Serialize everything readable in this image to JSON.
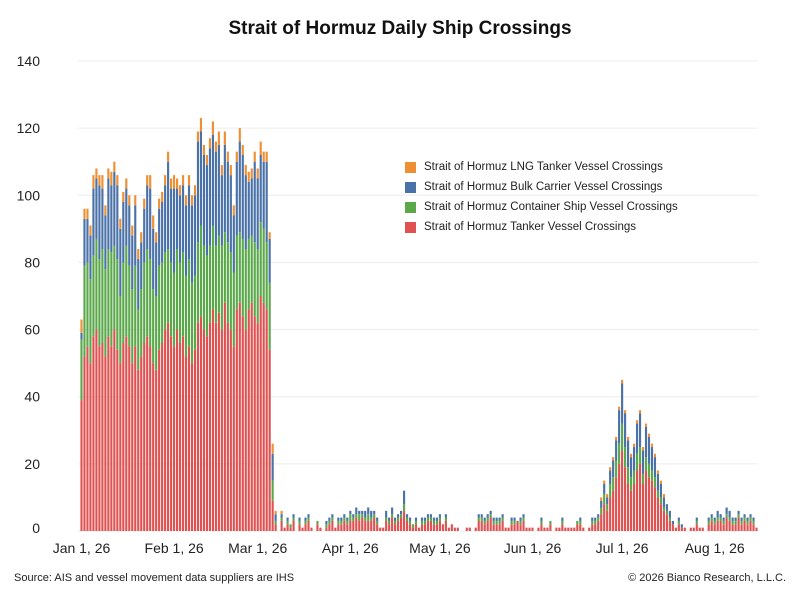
{
  "chart_data": {
    "type": "bar",
    "stacked": true,
    "title": "Strait of Hormuz Daily Ship Crossings",
    "xlabel": "",
    "ylabel": "",
    "ylim": [
      0,
      140
    ],
    "yticks": [
      0,
      20,
      40,
      60,
      80,
      100,
      120,
      140
    ],
    "grid": true,
    "legend_position": "right-middle",
    "x_tick_labels": [
      "Jan 1, 26",
      "Feb 1, 26",
      "Mar 1, 26",
      "Apr 1, 26",
      "May 1, 26",
      "Jun 1, 26",
      "Jul 1, 26",
      "Aug 1, 26"
    ],
    "start_date": "2026-01-01",
    "series": [
      {
        "name": "Strait of Hormuz Tanker Vessel Crossings",
        "color": "#e05252",
        "values": [
          39,
          52,
          55,
          50,
          58,
          60,
          55,
          56,
          52,
          58,
          55,
          60,
          54,
          50,
          56,
          58,
          55,
          50,
          55,
          48,
          52,
          56,
          58,
          55,
          50,
          48,
          54,
          56,
          60,
          62,
          58,
          55,
          60,
          56,
          58,
          52,
          55,
          50,
          54,
          62,
          64,
          60,
          58,
          62,
          66,
          62,
          65,
          60,
          68,
          62,
          60,
          55,
          66,
          68,
          64,
          60,
          66,
          68,
          64,
          62,
          70,
          68,
          66,
          54,
          9,
          2,
          0,
          3,
          1,
          2,
          1,
          3,
          0,
          2,
          1,
          2,
          3,
          1,
          0,
          2,
          1,
          0,
          1,
          2,
          3,
          1,
          2,
          2,
          3,
          2,
          3,
          3,
          4,
          3,
          4,
          3,
          3,
          3,
          4,
          2,
          1,
          1,
          3,
          2,
          4,
          2,
          3,
          4,
          6,
          3,
          2,
          1,
          2,
          1,
          2,
          2,
          3,
          3,
          2,
          2,
          3,
          2,
          3,
          1,
          2,
          1,
          1,
          0,
          0,
          1,
          1,
          0,
          1,
          3,
          3,
          2,
          3,
          4,
          2,
          2,
          2,
          3,
          1,
          1,
          2,
          2,
          3,
          2,
          3,
          1,
          1,
          1,
          0,
          1,
          2,
          1,
          1,
          2,
          0,
          1,
          1,
          2,
          1,
          1,
          1,
          1,
          2,
          2,
          1,
          0,
          1,
          2,
          2,
          3,
          5,
          8,
          6,
          10,
          12,
          16,
          20,
          24,
          19,
          14,
          12,
          14,
          18,
          20,
          14,
          18,
          16,
          15,
          13,
          10,
          8,
          6,
          5,
          3,
          2,
          1,
          2,
          1,
          1,
          0,
          1,
          1,
          2,
          1,
          1,
          0,
          2,
          3,
          2,
          3,
          3,
          2,
          4,
          3,
          2,
          2,
          4,
          2,
          3,
          2,
          3,
          2,
          1
        ]
      },
      {
        "name": "Strait of Hormuz Container Ship Vessel Crossings",
        "color": "#5aa84a",
        "values": [
          18,
          27,
          25,
          25,
          24,
          27,
          26,
          28,
          26,
          26,
          28,
          25,
          27,
          20,
          24,
          27,
          24,
          22,
          24,
          18,
          20,
          24,
          26,
          26,
          22,
          22,
          25,
          24,
          23,
          22,
          22,
          22,
          24,
          24,
          25,
          24,
          26,
          24,
          22,
          24,
          27,
          25,
          24,
          23,
          25,
          23,
          23,
          25,
          21,
          24,
          23,
          22,
          22,
          21,
          23,
          24,
          21,
          20,
          22,
          22,
          22,
          22,
          20,
          20,
          6,
          1,
          0,
          1,
          0,
          1,
          1,
          1,
          0,
          1,
          0,
          1,
          1,
          0,
          0,
          1,
          0,
          0,
          1,
          1,
          1,
          0,
          1,
          1,
          1,
          1,
          2,
          1,
          1,
          2,
          1,
          1,
          2,
          1,
          1,
          1,
          0,
          0,
          1,
          1,
          1,
          1,
          1,
          1,
          2,
          1,
          1,
          1,
          1,
          0,
          1,
          1,
          1,
          1,
          1,
          1,
          1,
          0,
          1,
          0,
          0,
          0,
          0,
          0,
          0,
          0,
          0,
          0,
          0,
          1,
          1,
          1,
          1,
          1,
          1,
          1,
          1,
          1,
          0,
          0,
          1,
          1,
          0,
          1,
          1,
          0,
          0,
          0,
          0,
          0,
          1,
          0,
          0,
          1,
          0,
          0,
          0,
          1,
          0,
          0,
          0,
          0,
          1,
          1,
          0,
          0,
          0,
          1,
          1,
          1,
          2,
          3,
          2,
          4,
          4,
          5,
          6,
          8,
          6,
          5,
          4,
          4,
          5,
          5,
          3,
          4,
          4,
          3,
          3,
          2,
          2,
          1,
          1,
          1,
          0,
          0,
          1,
          0,
          0,
          0,
          0,
          0,
          1,
          0,
          0,
          0,
          1,
          1,
          1,
          1,
          1,
          1,
          1,
          1,
          1,
          1,
          1,
          1,
          1,
          1,
          1,
          1,
          0
        ]
      },
      {
        "name": "Strait of Hormuz Bulk Carrier Vessel Crossings",
        "color": "#4a72a8",
        "values": [
          2,
          14,
          13,
          13,
          20,
          18,
          22,
          18,
          16,
          21,
          20,
          22,
          22,
          20,
          18,
          17,
          18,
          16,
          18,
          15,
          14,
          16,
          19,
          21,
          18,
          16,
          17,
          18,
          20,
          26,
          22,
          25,
          18,
          20,
          20,
          21,
          22,
          23,
          24,
          30,
          28,
          27,
          27,
          29,
          27,
          28,
          27,
          21,
          26,
          24,
          23,
          17,
          22,
          27,
          25,
          22,
          17,
          17,
          24,
          21,
          20,
          20,
          24,
          13,
          8,
          2,
          0,
          1,
          0,
          1,
          0,
          1,
          0,
          1,
          0,
          1,
          1,
          0,
          0,
          0,
          0,
          0,
          1,
          1,
          1,
          0,
          1,
          1,
          1,
          1,
          1,
          1,
          2,
          1,
          1,
          2,
          2,
          2,
          1,
          1,
          0,
          0,
          2,
          1,
          2,
          1,
          1,
          1,
          4,
          1,
          1,
          0,
          1,
          0,
          1,
          1,
          1,
          1,
          1,
          1,
          1,
          0,
          1,
          0,
          0,
          0,
          0,
          0,
          0,
          0,
          0,
          0,
          0,
          1,
          1,
          1,
          1,
          1,
          1,
          1,
          1,
          1,
          0,
          0,
          1,
          1,
          0,
          1,
          1,
          0,
          0,
          0,
          0,
          0,
          1,
          0,
          0,
          0,
          0,
          0,
          0,
          1,
          0,
          0,
          0,
          0,
          0,
          1,
          0,
          0,
          0,
          1,
          1,
          1,
          2,
          3,
          2,
          4,
          5,
          6,
          10,
          12,
          10,
          8,
          6,
          7,
          9,
          10,
          7,
          9,
          8,
          7,
          6,
          5,
          4,
          3,
          2,
          2,
          1,
          0,
          1,
          1,
          0,
          0,
          0,
          0,
          1,
          0,
          0,
          0,
          1,
          1,
          1,
          2,
          1,
          1,
          2,
          2,
          1,
          1,
          1,
          1,
          1,
          1,
          1,
          1,
          0
        ]
      },
      {
        "name": "Strait of Hormuz LNG Tanker Vessel Crossings",
        "color": "#ee8f34",
        "values": [
          4,
          3,
          3,
          3,
          4,
          3,
          3,
          4,
          3,
          3,
          4,
          3,
          3,
          3,
          3,
          3,
          3,
          3,
          3,
          3,
          3,
          3,
          3,
          4,
          4,
          3,
          3,
          3,
          3,
          3,
          3,
          4,
          3,
          3,
          3,
          3,
          3,
          3,
          3,
          3,
          4,
          3,
          3,
          3,
          4,
          3,
          4,
          3,
          4,
          3,
          3,
          3,
          3,
          4,
          3,
          3,
          3,
          3,
          3,
          3,
          4,
          3,
          3,
          2,
          3,
          1,
          0,
          1,
          0,
          0,
          0,
          0,
          0,
          0,
          0,
          0,
          0,
          0,
          0,
          0,
          0,
          0,
          0,
          0,
          0,
          0,
          0,
          0,
          0,
          0,
          0,
          0,
          0,
          0,
          0,
          0,
          0,
          0,
          0,
          0,
          0,
          0,
          0,
          0,
          0,
          0,
          0,
          0,
          0,
          0,
          0,
          0,
          0,
          0,
          0,
          0,
          0,
          0,
          0,
          0,
          0,
          0,
          0,
          0,
          0,
          0,
          0,
          0,
          0,
          0,
          0,
          0,
          0,
          0,
          0,
          0,
          0,
          0,
          0,
          0,
          0,
          0,
          0,
          0,
          0,
          0,
          0,
          0,
          0,
          0,
          0,
          0,
          0,
          0,
          0,
          0,
          0,
          0,
          0,
          0,
          0,
          0,
          0,
          0,
          0,
          0,
          0,
          0,
          0,
          0,
          0,
          0,
          0,
          0,
          1,
          1,
          1,
          1,
          1,
          1,
          1,
          1,
          1,
          1,
          1,
          1,
          1,
          1,
          1,
          1,
          1,
          1,
          1,
          1,
          1,
          1,
          0,
          0,
          0,
          0,
          0,
          0,
          0,
          0,
          0,
          0,
          0,
          0,
          0,
          0,
          0,
          0,
          0,
          0,
          0,
          0,
          0,
          0,
          0,
          0,
          0,
          0,
          0,
          0,
          0,
          0,
          0
        ]
      }
    ]
  },
  "footer": {
    "source": "Source: AIS and vessel movement data suppliers are IHS",
    "copyright": "© 2026 Bianco Research, L.L.C."
  }
}
